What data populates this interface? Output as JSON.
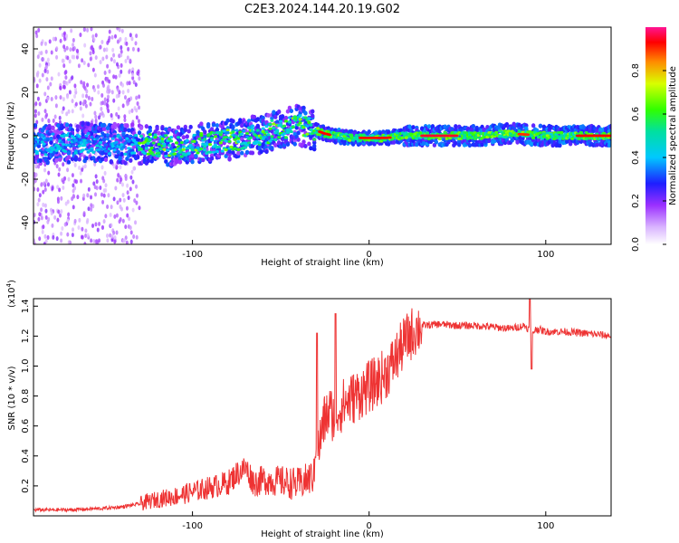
{
  "title": "C2E3.2024.144.20.19.G02",
  "chart_data": [
    {
      "type": "heatmap",
      "xlabel": "Height of straight line (km)",
      "ylabel": "Frequency (Hz)",
      "xlim": [
        -190,
        137
      ],
      "ylim": [
        -50,
        50
      ],
      "xticks": [
        -100,
        0,
        100
      ],
      "yticks": [
        -40,
        -20,
        0,
        20,
        40
      ],
      "colorbar": {
        "label": "Normalized spectral amplitude",
        "range": [
          0,
          1
        ],
        "ticks": [
          "0.0",
          "0.2",
          "0.4",
          "0.6",
          "0.8"
        ]
      },
      "ridge": {
        "x": [
          -190,
          -160,
          -130,
          -110,
          -90,
          -70,
          -55,
          -42,
          -32,
          -25,
          -20,
          -10,
          0,
          10,
          20,
          30,
          40,
          60,
          80,
          100,
          120,
          137
        ],
        "y": [
          -4,
          -3,
          -4,
          -5,
          -3,
          -1,
          2,
          5,
          3,
          1,
          0,
          -1,
          -1,
          -1,
          0,
          0,
          0,
          0,
          1,
          0,
          0,
          0
        ]
      }
    },
    {
      "type": "line",
      "xlabel": "Height of straight line (km)",
      "ylabel": "SNR (10 * v/v)",
      "yscale_note": "(x10",
      "yscale_exp": "4",
      "xlim": [
        -190,
        137
      ],
      "ylim": [
        0,
        1.45
      ],
      "xticks": [
        -100,
        0,
        100
      ],
      "yticks": [
        "0.2",
        "0.4",
        "0.6",
        "0.8",
        "1.0",
        "1.2",
        "1.4"
      ],
      "series": [
        {
          "name": "SNR",
          "color": "#ee3333",
          "x": [
            -190,
            -170,
            -150,
            -140,
            -130,
            -120,
            -110,
            -100,
            -90,
            -80,
            -75,
            -70,
            -65,
            -60,
            -50,
            -40,
            -35,
            -31,
            -30,
            -29,
            -27,
            -25,
            -22,
            -20,
            -15,
            -10,
            -5,
            0,
            5,
            10,
            15,
            20,
            25,
            30,
            40,
            50,
            60,
            70,
            80,
            88,
            90,
            92,
            95,
            100,
            110,
            120,
            130,
            137
          ],
          "y": [
            0.04,
            0.04,
            0.05,
            0.06,
            0.08,
            0.11,
            0.13,
            0.16,
            0.19,
            0.22,
            0.28,
            0.32,
            0.22,
            0.24,
            0.23,
            0.21,
            0.24,
            0.27,
            0.55,
            0.42,
            0.55,
            0.65,
            0.7,
            0.66,
            0.74,
            0.78,
            0.82,
            0.86,
            0.9,
            0.96,
            1.05,
            1.16,
            1.23,
            1.27,
            1.28,
            1.27,
            1.27,
            1.26,
            1.25,
            1.27,
            1.25,
            1.22,
            1.25,
            1.23,
            1.23,
            1.22,
            1.21,
            1.2
          ]
        }
      ]
    }
  ]
}
